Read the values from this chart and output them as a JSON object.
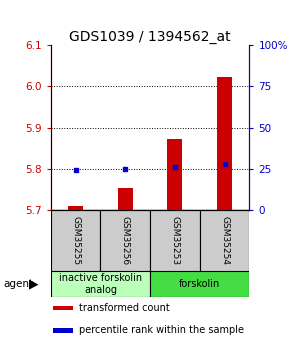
{
  "title": "GDS1039 / 1394562_at",
  "samples": [
    "GSM35255",
    "GSM35256",
    "GSM35253",
    "GSM35254"
  ],
  "bar_values": [
    5.71,
    5.755,
    5.872,
    6.022
  ],
  "bar_baseline": 5.7,
  "bar_color": "#cc0000",
  "percentile_values": [
    24.5,
    24.8,
    26.5,
    28.0
  ],
  "percentile_color": "#0000cc",
  "ylim_left": [
    5.7,
    6.1
  ],
  "ylim_right": [
    0,
    100
  ],
  "yticks_left": [
    5.7,
    5.8,
    5.9,
    6.0,
    6.1
  ],
  "yticks_right": [
    0,
    25,
    50,
    75,
    100
  ],
  "ytick_labels_right": [
    "0",
    "25",
    "50",
    "75",
    "100%"
  ],
  "groups": [
    {
      "label": "inactive forskolin\nanalog",
      "span": [
        0,
        1
      ],
      "color": "#bbffbb"
    },
    {
      "label": "forskolin",
      "span": [
        2,
        3
      ],
      "color": "#44dd44"
    }
  ],
  "legend_items": [
    {
      "color": "#cc0000",
      "label": "transformed count"
    },
    {
      "color": "#0000cc",
      "label": "percentile rank within the sample"
    }
  ],
  "title_fontsize": 10,
  "tick_fontsize": 7.5,
  "sample_fontsize": 6.5,
  "group_fontsize": 7,
  "legend_fontsize": 7
}
